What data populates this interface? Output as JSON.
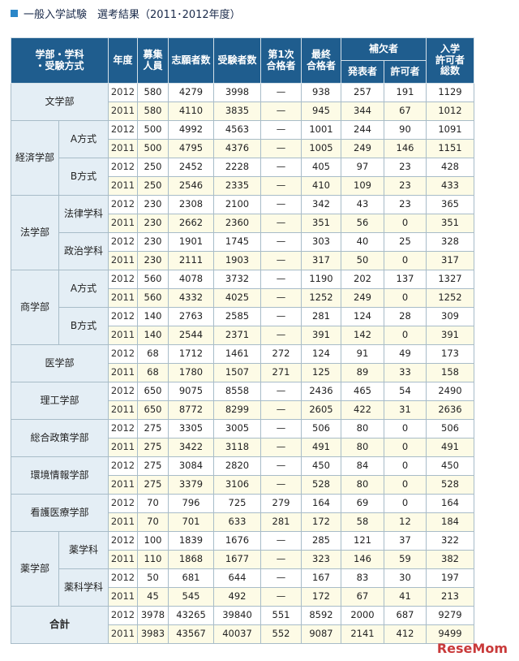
{
  "title": "一般入学試験　選考結果（2011･2012年度）",
  "watermark": "ReseMom",
  "colors": {
    "header_bg": "#1f5d8e",
    "label_bg": "#e4eef5",
    "odd_row_bg": "#ffffff",
    "even_row_bg": "#fdfbe6",
    "title_mark": "#2a86c8"
  },
  "headers": {
    "dept": "学部・学科\n・受験方式",
    "year": "年度",
    "capacity": "募集\n人員",
    "applicants": "志願者数",
    "examinees": "受験者数",
    "first_pass": "第1次\n合格者",
    "final_pass": "最終\n合格者",
    "waitlist_group": "補欠者",
    "waitlist_announced": "発表者",
    "waitlist_admitted": "許可者",
    "admitted_total": "入学\n許可者\n総数"
  },
  "rows": [
    {
      "dept": "文学部",
      "sub": "",
      "year": "2012",
      "cap": "580",
      "app": "4279",
      "exam": "3998",
      "first": "—",
      "final": "938",
      "wl": "257",
      "wa": "191",
      "total": "1129"
    },
    {
      "dept": "",
      "sub": "",
      "year": "2011",
      "cap": "580",
      "app": "4110",
      "exam": "3835",
      "first": "—",
      "final": "945",
      "wl": "344",
      "wa": "67",
      "total": "1012"
    },
    {
      "dept": "経済学部",
      "sub": "A方式",
      "year": "2012",
      "cap": "500",
      "app": "4992",
      "exam": "4563",
      "first": "—",
      "final": "1001",
      "wl": "244",
      "wa": "90",
      "total": "1091"
    },
    {
      "dept": "",
      "sub": "",
      "year": "2011",
      "cap": "500",
      "app": "4795",
      "exam": "4376",
      "first": "—",
      "final": "1005",
      "wl": "249",
      "wa": "146",
      "total": "1151"
    },
    {
      "dept": "",
      "sub": "B方式",
      "year": "2012",
      "cap": "250",
      "app": "2452",
      "exam": "2228",
      "first": "—",
      "final": "405",
      "wl": "97",
      "wa": "23",
      "total": "428"
    },
    {
      "dept": "",
      "sub": "",
      "year": "2011",
      "cap": "250",
      "app": "2546",
      "exam": "2335",
      "first": "—",
      "final": "410",
      "wl": "109",
      "wa": "23",
      "total": "433"
    },
    {
      "dept": "法学部",
      "sub": "法律学科",
      "year": "2012",
      "cap": "230",
      "app": "2308",
      "exam": "2100",
      "first": "—",
      "final": "342",
      "wl": "43",
      "wa": "23",
      "total": "365"
    },
    {
      "dept": "",
      "sub": "",
      "year": "2011",
      "cap": "230",
      "app": "2662",
      "exam": "2360",
      "first": "—",
      "final": "351",
      "wl": "56",
      "wa": "0",
      "total": "351"
    },
    {
      "dept": "",
      "sub": "政治学科",
      "year": "2012",
      "cap": "230",
      "app": "1901",
      "exam": "1745",
      "first": "—",
      "final": "303",
      "wl": "40",
      "wa": "25",
      "total": "328"
    },
    {
      "dept": "",
      "sub": "",
      "year": "2011",
      "cap": "230",
      "app": "2111",
      "exam": "1903",
      "first": "—",
      "final": "317",
      "wl": "50",
      "wa": "0",
      "total": "317"
    },
    {
      "dept": "商学部",
      "sub": "A方式",
      "year": "2012",
      "cap": "560",
      "app": "4078",
      "exam": "3732",
      "first": "—",
      "final": "1190",
      "wl": "202",
      "wa": "137",
      "total": "1327"
    },
    {
      "dept": "",
      "sub": "",
      "year": "2011",
      "cap": "560",
      "app": "4332",
      "exam": "4025",
      "first": "—",
      "final": "1252",
      "wl": "249",
      "wa": "0",
      "total": "1252"
    },
    {
      "dept": "",
      "sub": "B方式",
      "year": "2012",
      "cap": "140",
      "app": "2763",
      "exam": "2585",
      "first": "—",
      "final": "281",
      "wl": "124",
      "wa": "28",
      "total": "309"
    },
    {
      "dept": "",
      "sub": "",
      "year": "2011",
      "cap": "140",
      "app": "2544",
      "exam": "2371",
      "first": "—",
      "final": "391",
      "wl": "142",
      "wa": "0",
      "total": "391"
    },
    {
      "dept": "医学部",
      "sub": "",
      "year": "2012",
      "cap": "68",
      "app": "1712",
      "exam": "1461",
      "first": "272",
      "final": "124",
      "wl": "91",
      "wa": "49",
      "total": "173"
    },
    {
      "dept": "",
      "sub": "",
      "year": "2011",
      "cap": "68",
      "app": "1780",
      "exam": "1507",
      "first": "271",
      "final": "125",
      "wl": "89",
      "wa": "33",
      "total": "158"
    },
    {
      "dept": "理工学部",
      "sub": "",
      "year": "2012",
      "cap": "650",
      "app": "9075",
      "exam": "8558",
      "first": "—",
      "final": "2436",
      "wl": "465",
      "wa": "54",
      "total": "2490"
    },
    {
      "dept": "",
      "sub": "",
      "year": "2011",
      "cap": "650",
      "app": "8772",
      "exam": "8299",
      "first": "—",
      "final": "2605",
      "wl": "422",
      "wa": "31",
      "total": "2636"
    },
    {
      "dept": "総合政策学部",
      "sub": "",
      "year": "2012",
      "cap": "275",
      "app": "3305",
      "exam": "3005",
      "first": "—",
      "final": "506",
      "wl": "80",
      "wa": "0",
      "total": "506"
    },
    {
      "dept": "",
      "sub": "",
      "year": "2011",
      "cap": "275",
      "app": "3422",
      "exam": "3118",
      "first": "—",
      "final": "491",
      "wl": "80",
      "wa": "0",
      "total": "491"
    },
    {
      "dept": "環境情報学部",
      "sub": "",
      "year": "2012",
      "cap": "275",
      "app": "3084",
      "exam": "2820",
      "first": "—",
      "final": "450",
      "wl": "84",
      "wa": "0",
      "total": "450"
    },
    {
      "dept": "",
      "sub": "",
      "year": "2011",
      "cap": "275",
      "app": "3379",
      "exam": "3106",
      "first": "—",
      "final": "528",
      "wl": "80",
      "wa": "0",
      "total": "528"
    },
    {
      "dept": "看護医療学部",
      "sub": "",
      "year": "2012",
      "cap": "70",
      "app": "796",
      "exam": "725",
      "first": "279",
      "final": "164",
      "wl": "69",
      "wa": "0",
      "total": "164"
    },
    {
      "dept": "",
      "sub": "",
      "year": "2011",
      "cap": "70",
      "app": "701",
      "exam": "633",
      "first": "281",
      "final": "172",
      "wl": "58",
      "wa": "12",
      "total": "184"
    },
    {
      "dept": "薬学部",
      "sub": "薬学科",
      "year": "2012",
      "cap": "100",
      "app": "1839",
      "exam": "1676",
      "first": "—",
      "final": "285",
      "wl": "121",
      "wa": "37",
      "total": "322"
    },
    {
      "dept": "",
      "sub": "",
      "year": "2011",
      "cap": "110",
      "app": "1868",
      "exam": "1677",
      "first": "—",
      "final": "323",
      "wl": "146",
      "wa": "59",
      "total": "382"
    },
    {
      "dept": "",
      "sub": "薬科学科",
      "year": "2012",
      "cap": "50",
      "app": "681",
      "exam": "644",
      "first": "—",
      "final": "167",
      "wl": "83",
      "wa": "30",
      "total": "197"
    },
    {
      "dept": "",
      "sub": "",
      "year": "2011",
      "cap": "45",
      "app": "545",
      "exam": "492",
      "first": "—",
      "final": "172",
      "wl": "67",
      "wa": "41",
      "total": "213"
    },
    {
      "dept": "合計",
      "sub": "",
      "year": "2012",
      "cap": "3978",
      "app": "43265",
      "exam": "39840",
      "first": "551",
      "final": "8592",
      "wl": "2000",
      "wa": "687",
      "total": "9279"
    },
    {
      "dept": "",
      "sub": "",
      "year": "2011",
      "cap": "3983",
      "app": "43567",
      "exam": "40037",
      "first": "552",
      "final": "9087",
      "wl": "2141",
      "wa": "412",
      "total": "9499"
    }
  ]
}
